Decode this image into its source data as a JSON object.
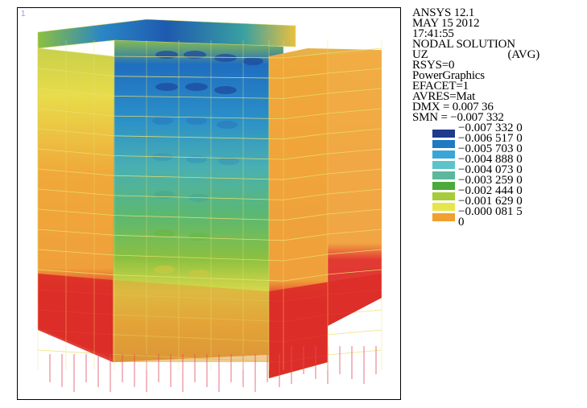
{
  "viewport": {
    "window_number": "1"
  },
  "legend": {
    "title_lines": [
      "ANSYS 12.1",
      "MAY 15 2012",
      "17:41:55",
      "NODAL SOLUTION"
    ],
    "uz_label": "UZ",
    "avg_label": "(AVG)",
    "settings": [
      "RSYS=0",
      "PowerGraphics",
      "EFACET=1",
      "AVRES=Mat",
      "DMX = 0.007 36",
      "SMN = −0.007 332"
    ],
    "contours": [
      {
        "value": "−0.007 332 0",
        "color": "#1e3c8c"
      },
      {
        "value": "−0.006 517 0",
        "color": "#1f7ac4"
      },
      {
        "value": "−0.005 703 0",
        "color": "#3aa6d8"
      },
      {
        "value": "−0.004 888 0",
        "color": "#5cc4c8"
      },
      {
        "value": "−0.004 073 0",
        "color": "#5cb89c"
      },
      {
        "value": "−0.003 259 0",
        "color": "#4aaa3a"
      },
      {
        "value": "−0.002 444 0",
        "color": "#a6cc3a"
      },
      {
        "value": "−0.001 629 0",
        "color": "#e6e64a"
      },
      {
        "value": "−0.000 081 5",
        "color": "#f0a030"
      },
      {
        "value": "0",
        "color": "#e03028"
      }
    ]
  }
}
